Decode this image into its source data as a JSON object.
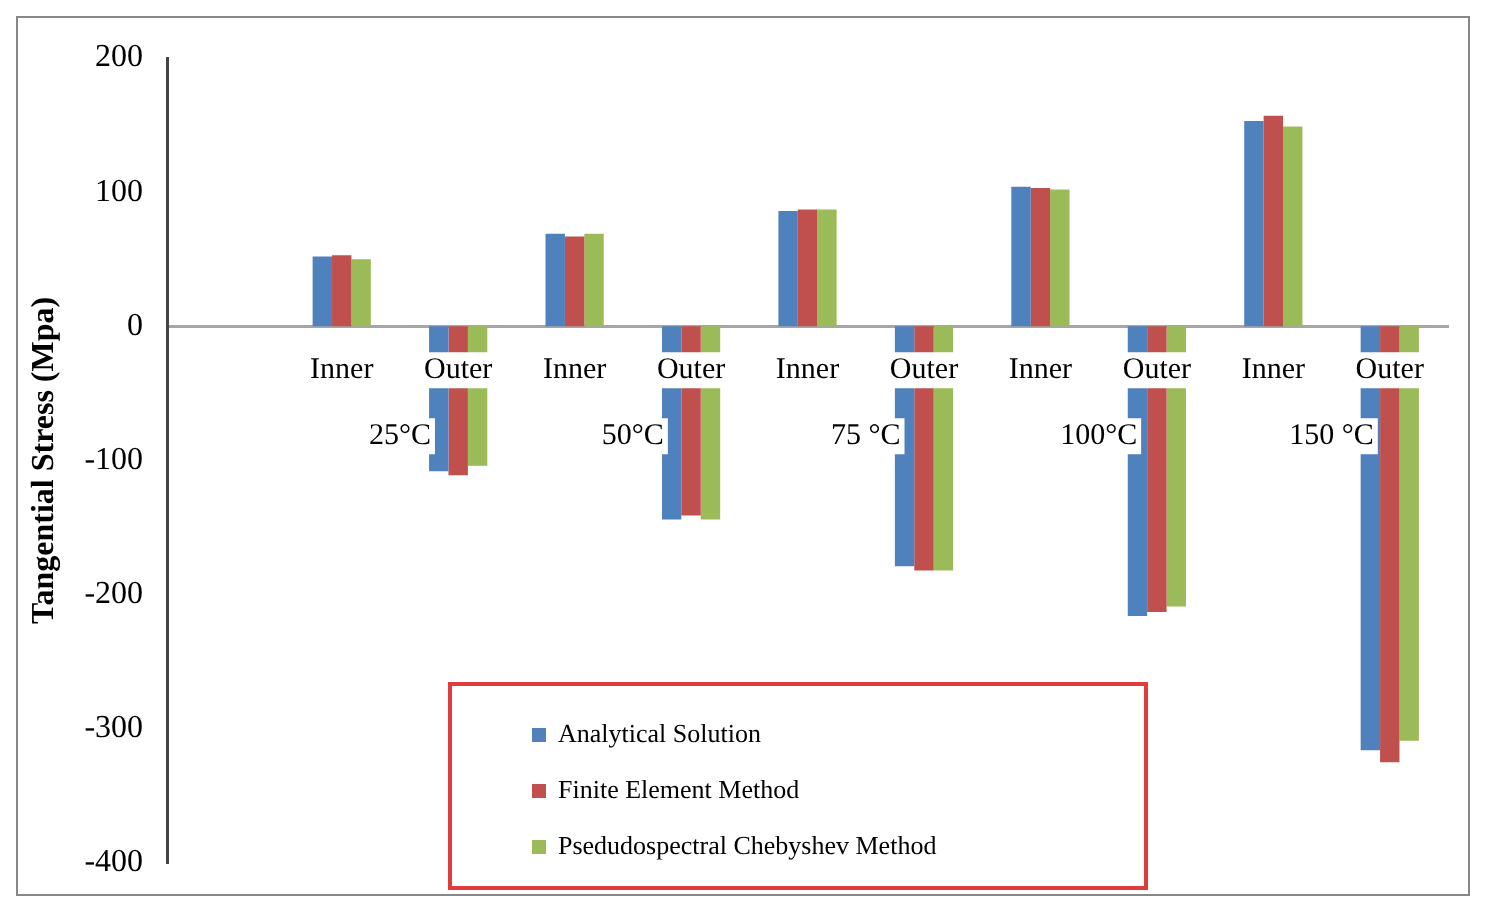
{
  "chart_data": {
    "type": "bar",
    "ylabel": "Tangential Stress (Mpa)",
    "categories": [
      null,
      "Inner",
      "Outer",
      "Inner",
      "Outer",
      "Inner",
      "Outer",
      "Inner",
      "Outer",
      "Inner",
      "Outer"
    ],
    "series": [
      {
        "name": "Analytical Solution",
        "color": "#4f81bd",
        "values": [
          null,
          52,
          -108,
          69,
          -144,
          86,
          -179,
          104,
          -216,
          153,
          -316
        ]
      },
      {
        "name": "Finite Element Method",
        "color": "#c0504d",
        "values": [
          null,
          53,
          -111,
          67,
          -141,
          87,
          -182,
          103,
          -213,
          157,
          -325
        ]
      },
      {
        "name": "Psedudospectral Chebyshev Method",
        "color": "#9bbb59",
        "values": [
          null,
          50,
          -104,
          69,
          -144,
          87,
          -182,
          102,
          -209,
          149,
          -309
        ]
      }
    ],
    "annotations": [
      "25°C",
      "50°C",
      "75 °C",
      "100°C",
      "150 °C"
    ],
    "ylim": [
      -400,
      200
    ],
    "yticks": [
      -400,
      -300,
      -200,
      -100,
      0,
      100,
      200
    ],
    "grid": false,
    "legend": "bottom"
  }
}
